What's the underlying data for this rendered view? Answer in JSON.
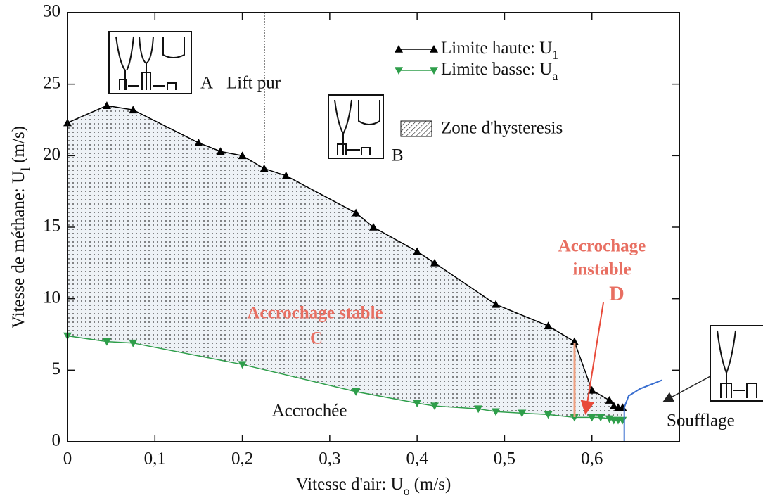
{
  "chart_data": {
    "type": "line",
    "x_label": {
      "text": "Vitesse d'air: U",
      "sub": "o",
      "unit": "(m/s)"
    },
    "y_label": {
      "text": "Vitesse de méthane: U",
      "sub": "l",
      "unit": "(m/s)"
    },
    "xlim": [
      0,
      0.7
    ],
    "ylim": [
      0,
      30
    ],
    "xticks": [
      0,
      {
        "value": 0.1,
        "label": "0,1"
      },
      {
        "value": 0.2,
        "label": "0,2"
      },
      {
        "value": 0.3,
        "label": "0,3"
      },
      {
        "value": 0.4,
        "label": "0,4"
      },
      {
        "value": 0.5,
        "label": "0,5"
      },
      {
        "value": 0.6,
        "label": "0,6"
      }
    ],
    "yticks": [
      0,
      5,
      10,
      15,
      20,
      25,
      30
    ],
    "series": [
      {
        "name": "Limite haute: U",
        "name_sub": "1",
        "color": "#000000",
        "marker": "triangle-up",
        "x": [
          0,
          0.045,
          0.075,
          0.15,
          0.175,
          0.2,
          0.225,
          0.25,
          0.33,
          0.35,
          0.4,
          0.42,
          0.49,
          0.55,
          0.58,
          0.6,
          0.62,
          0.625,
          0.63,
          0.635
        ],
        "values": [
          22.3,
          23.5,
          23.2,
          20.9,
          20.3,
          20.0,
          19.1,
          18.6,
          16.0,
          15.0,
          13.3,
          12.5,
          9.6,
          8.1,
          7.0,
          3.6,
          2.9,
          2.5,
          2.4,
          2.4
        ]
      },
      {
        "name": "Limite basse: U",
        "name_sub": "a",
        "color": "#2e9e4a",
        "marker": "triangle-down",
        "x": [
          0,
          0.045,
          0.075,
          0.2,
          0.33,
          0.4,
          0.42,
          0.47,
          0.49,
          0.52,
          0.55,
          0.58,
          0.6,
          0.61,
          0.62,
          0.625,
          0.63,
          0.635
        ],
        "values": [
          7.4,
          7.0,
          6.9,
          5.4,
          3.5,
          2.7,
          2.5,
          2.3,
          2.1,
          2.0,
          1.9,
          1.7,
          1.7,
          1.7,
          1.6,
          1.5,
          1.5,
          1.5
        ]
      }
    ],
    "blowoff_curve": {
      "color": "#3a6fd0",
      "x": [
        0.637,
        0.637,
        0.642,
        0.655,
        0.68
      ],
      "values": [
        0,
        2.4,
        3.2,
        3.7,
        4.3
      ]
    },
    "zone_label": "Zone d'hysteresis",
    "annotations": {
      "a": "A",
      "lift": "Lift pur",
      "b": "B",
      "stable": "Accrochage stable",
      "c": "C",
      "instable_1": "Accrochage",
      "instable_2": "instable",
      "d": "D",
      "accrochee": "Accrochée",
      "soufflage": "Soufflage"
    }
  }
}
